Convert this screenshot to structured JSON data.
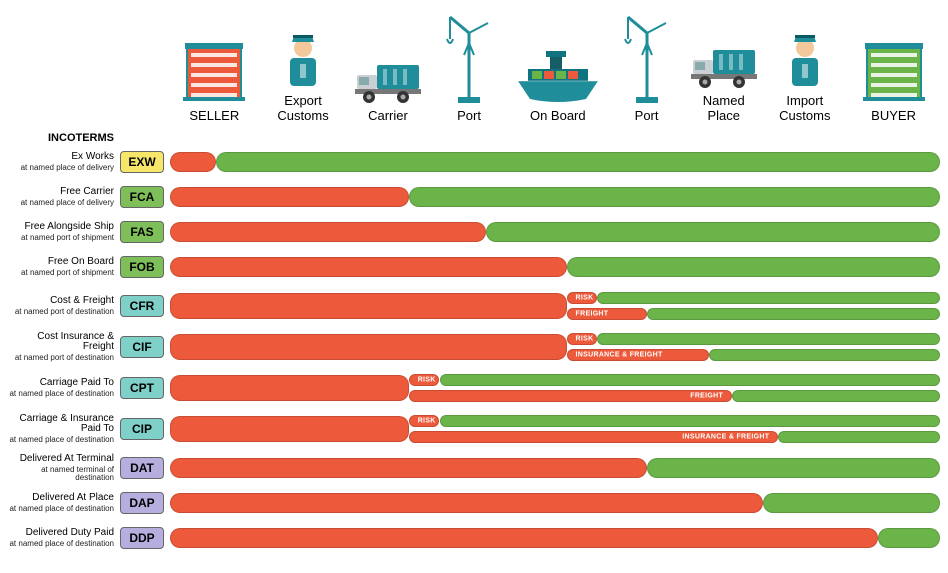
{
  "colors": {
    "seller": "#ec5a3b",
    "buyer": "#6bb44a",
    "badge_yellow": "#f6e66a",
    "badge_green": "#7fbf5a",
    "badge_teal": "#7fd0c9",
    "badge_lav": "#b7aee0",
    "icon_teal": "#1f8e9a",
    "icon_orange": "#ec5a3b",
    "icon_green": "#6bb44a"
  },
  "title": "INCOTERMS",
  "stages": [
    {
      "key": "seller",
      "label": "SELLER",
      "width_pct": 12,
      "icon": "building-orange"
    },
    {
      "key": "exp_cust",
      "label": "Export\nCustoms",
      "width_pct": 11,
      "icon": "officer"
    },
    {
      "key": "carrier",
      "label": "Carrier",
      "width_pct": 11,
      "icon": "truck"
    },
    {
      "key": "port1",
      "label": "Port",
      "width_pct": 10,
      "icon": "crane"
    },
    {
      "key": "onboard",
      "label": "On Board",
      "width_pct": 13,
      "icon": "ship"
    },
    {
      "key": "port2",
      "label": "Port",
      "width_pct": 10,
      "icon": "crane"
    },
    {
      "key": "named",
      "label": "Named\nPlace",
      "width_pct": 10,
      "icon": "truck"
    },
    {
      "key": "imp_cust",
      "label": "Import\nCustoms",
      "width_pct": 11,
      "icon": "officer"
    },
    {
      "key": "buyer",
      "label": "BUYER",
      "width_pct": 12,
      "icon": "building-green"
    }
  ],
  "labels": {
    "risk": "RISK",
    "freight": "FREIGHT",
    "ins_freight": "INSURANCE & FREIGHT"
  },
  "rows": [
    {
      "code": "EXW",
      "badge": "badge_yellow",
      "name": "Ex Works",
      "sub": "at named place of delivery",
      "bars": [
        {
          "from": 0,
          "to": 6,
          "color": "seller"
        },
        {
          "from": 6,
          "to": 100,
          "color": "buyer"
        }
      ]
    },
    {
      "code": "FCA",
      "badge": "badge_green",
      "name": "Free Carrier",
      "sub": "at named place of delivery",
      "bars": [
        {
          "from": 0,
          "to": 31,
          "color": "seller"
        },
        {
          "from": 31,
          "to": 100,
          "color": "buyer"
        }
      ]
    },
    {
      "code": "FAS",
      "badge": "badge_green",
      "name": "Free Alongside Ship",
      "sub": "at named port of shipment",
      "bars": [
        {
          "from": 0,
          "to": 41,
          "color": "seller"
        },
        {
          "from": 41,
          "to": 100,
          "color": "buyer"
        }
      ]
    },
    {
      "code": "FOB",
      "badge": "badge_green",
      "name": "Free On Board",
      "sub": "at named port of shipment",
      "bars": [
        {
          "from": 0,
          "to": 51.5,
          "color": "seller"
        },
        {
          "from": 51.5,
          "to": 100,
          "color": "buyer"
        }
      ]
    },
    {
      "code": "CFR",
      "badge": "badge_teal",
      "gap_before": true,
      "tall": true,
      "name": "Cost & Freight",
      "sub": "at named port of destination",
      "bars": [
        {
          "from": 0,
          "to": 51.5,
          "color": "seller"
        }
      ],
      "split": {
        "from": 51.5,
        "to": 100,
        "top": [
          {
            "from": 51.5,
            "to": 55.5,
            "color": "seller",
            "label": "risk"
          },
          {
            "from": 55.5,
            "to": 100,
            "color": "buyer"
          }
        ],
        "bot": [
          {
            "from": 51.5,
            "to": 62,
            "color": "seller",
            "label": "freight"
          },
          {
            "from": 62,
            "to": 100,
            "color": "buyer"
          }
        ]
      }
    },
    {
      "code": "CIF",
      "badge": "badge_teal",
      "tall": true,
      "name": "Cost Insurance & Freight",
      "sub": "at named port of destination",
      "bars": [
        {
          "from": 0,
          "to": 51.5,
          "color": "seller"
        }
      ],
      "split": {
        "from": 51.5,
        "to": 100,
        "top": [
          {
            "from": 51.5,
            "to": 55.5,
            "color": "seller",
            "label": "risk"
          },
          {
            "from": 55.5,
            "to": 100,
            "color": "buyer"
          }
        ],
        "bot": [
          {
            "from": 51.5,
            "to": 70,
            "color": "seller",
            "label": "ins_freight"
          },
          {
            "from": 70,
            "to": 100,
            "color": "buyer"
          }
        ]
      }
    },
    {
      "code": "CPT",
      "badge": "badge_teal",
      "tall": true,
      "name": "Carriage Paid To",
      "sub": "at named place of destination",
      "bars": [
        {
          "from": 0,
          "to": 31,
          "color": "seller"
        }
      ],
      "split": {
        "from": 31,
        "to": 100,
        "top": [
          {
            "from": 31,
            "to": 35,
            "color": "seller",
            "label": "risk"
          },
          {
            "from": 35,
            "to": 100,
            "color": "buyer"
          }
        ],
        "bot": [
          {
            "from": 31,
            "to": 73,
            "color": "seller",
            "label_right": "freight"
          },
          {
            "from": 73,
            "to": 100,
            "color": "buyer"
          }
        ]
      }
    },
    {
      "code": "CIP",
      "badge": "badge_teal",
      "tall": true,
      "name": "Carriage & Insurance Paid To",
      "sub": "at named place of destination",
      "bars": [
        {
          "from": 0,
          "to": 31,
          "color": "seller"
        }
      ],
      "split": {
        "from": 31,
        "to": 100,
        "top": [
          {
            "from": 31,
            "to": 35,
            "color": "seller",
            "label": "risk"
          },
          {
            "from": 35,
            "to": 100,
            "color": "buyer"
          }
        ],
        "bot": [
          {
            "from": 31,
            "to": 79,
            "color": "seller",
            "label_right": "ins_freight"
          },
          {
            "from": 79,
            "to": 100,
            "color": "buyer"
          }
        ]
      }
    },
    {
      "code": "DAT",
      "badge": "badge_lav",
      "gap_before": true,
      "name": "Delivered At Terminal",
      "sub": "at named terminal of destination",
      "bars": [
        {
          "from": 0,
          "to": 62,
          "color": "seller"
        },
        {
          "from": 62,
          "to": 100,
          "color": "buyer"
        }
      ]
    },
    {
      "code": "DAP",
      "badge": "badge_lav",
      "name": "Delivered At Place",
      "sub": "at named place of destination",
      "bars": [
        {
          "from": 0,
          "to": 77,
          "color": "seller"
        },
        {
          "from": 77,
          "to": 100,
          "color": "buyer"
        }
      ]
    },
    {
      "code": "DDP",
      "badge": "badge_lav",
      "name": "Delivered Duty Paid",
      "sub": "at named place of destination",
      "bars": [
        {
          "from": 0,
          "to": 92,
          "color": "seller"
        },
        {
          "from": 92,
          "to": 100,
          "color": "buyer"
        }
      ]
    }
  ]
}
